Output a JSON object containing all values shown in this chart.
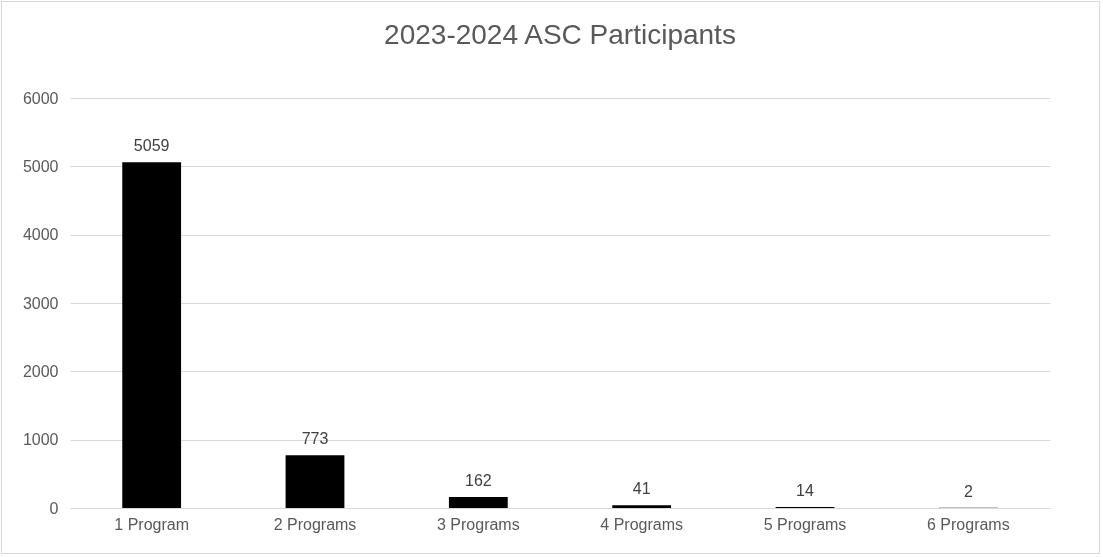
{
  "chart_data": {
    "type": "bar",
    "title": "2023-2024 ASC Participants",
    "categories": [
      "1 Program",
      "2 Programs",
      "3 Programs",
      "4 Programs",
      "5 Programs",
      "6 Programs"
    ],
    "values": [
      5059,
      773,
      162,
      41,
      14,
      2
    ],
    "color": "#000000",
    "ylim": [
      0,
      6000
    ],
    "yticks": [
      0,
      1000,
      2000,
      3000,
      4000,
      5000,
      6000
    ],
    "grid": true,
    "data_labels": true
  }
}
